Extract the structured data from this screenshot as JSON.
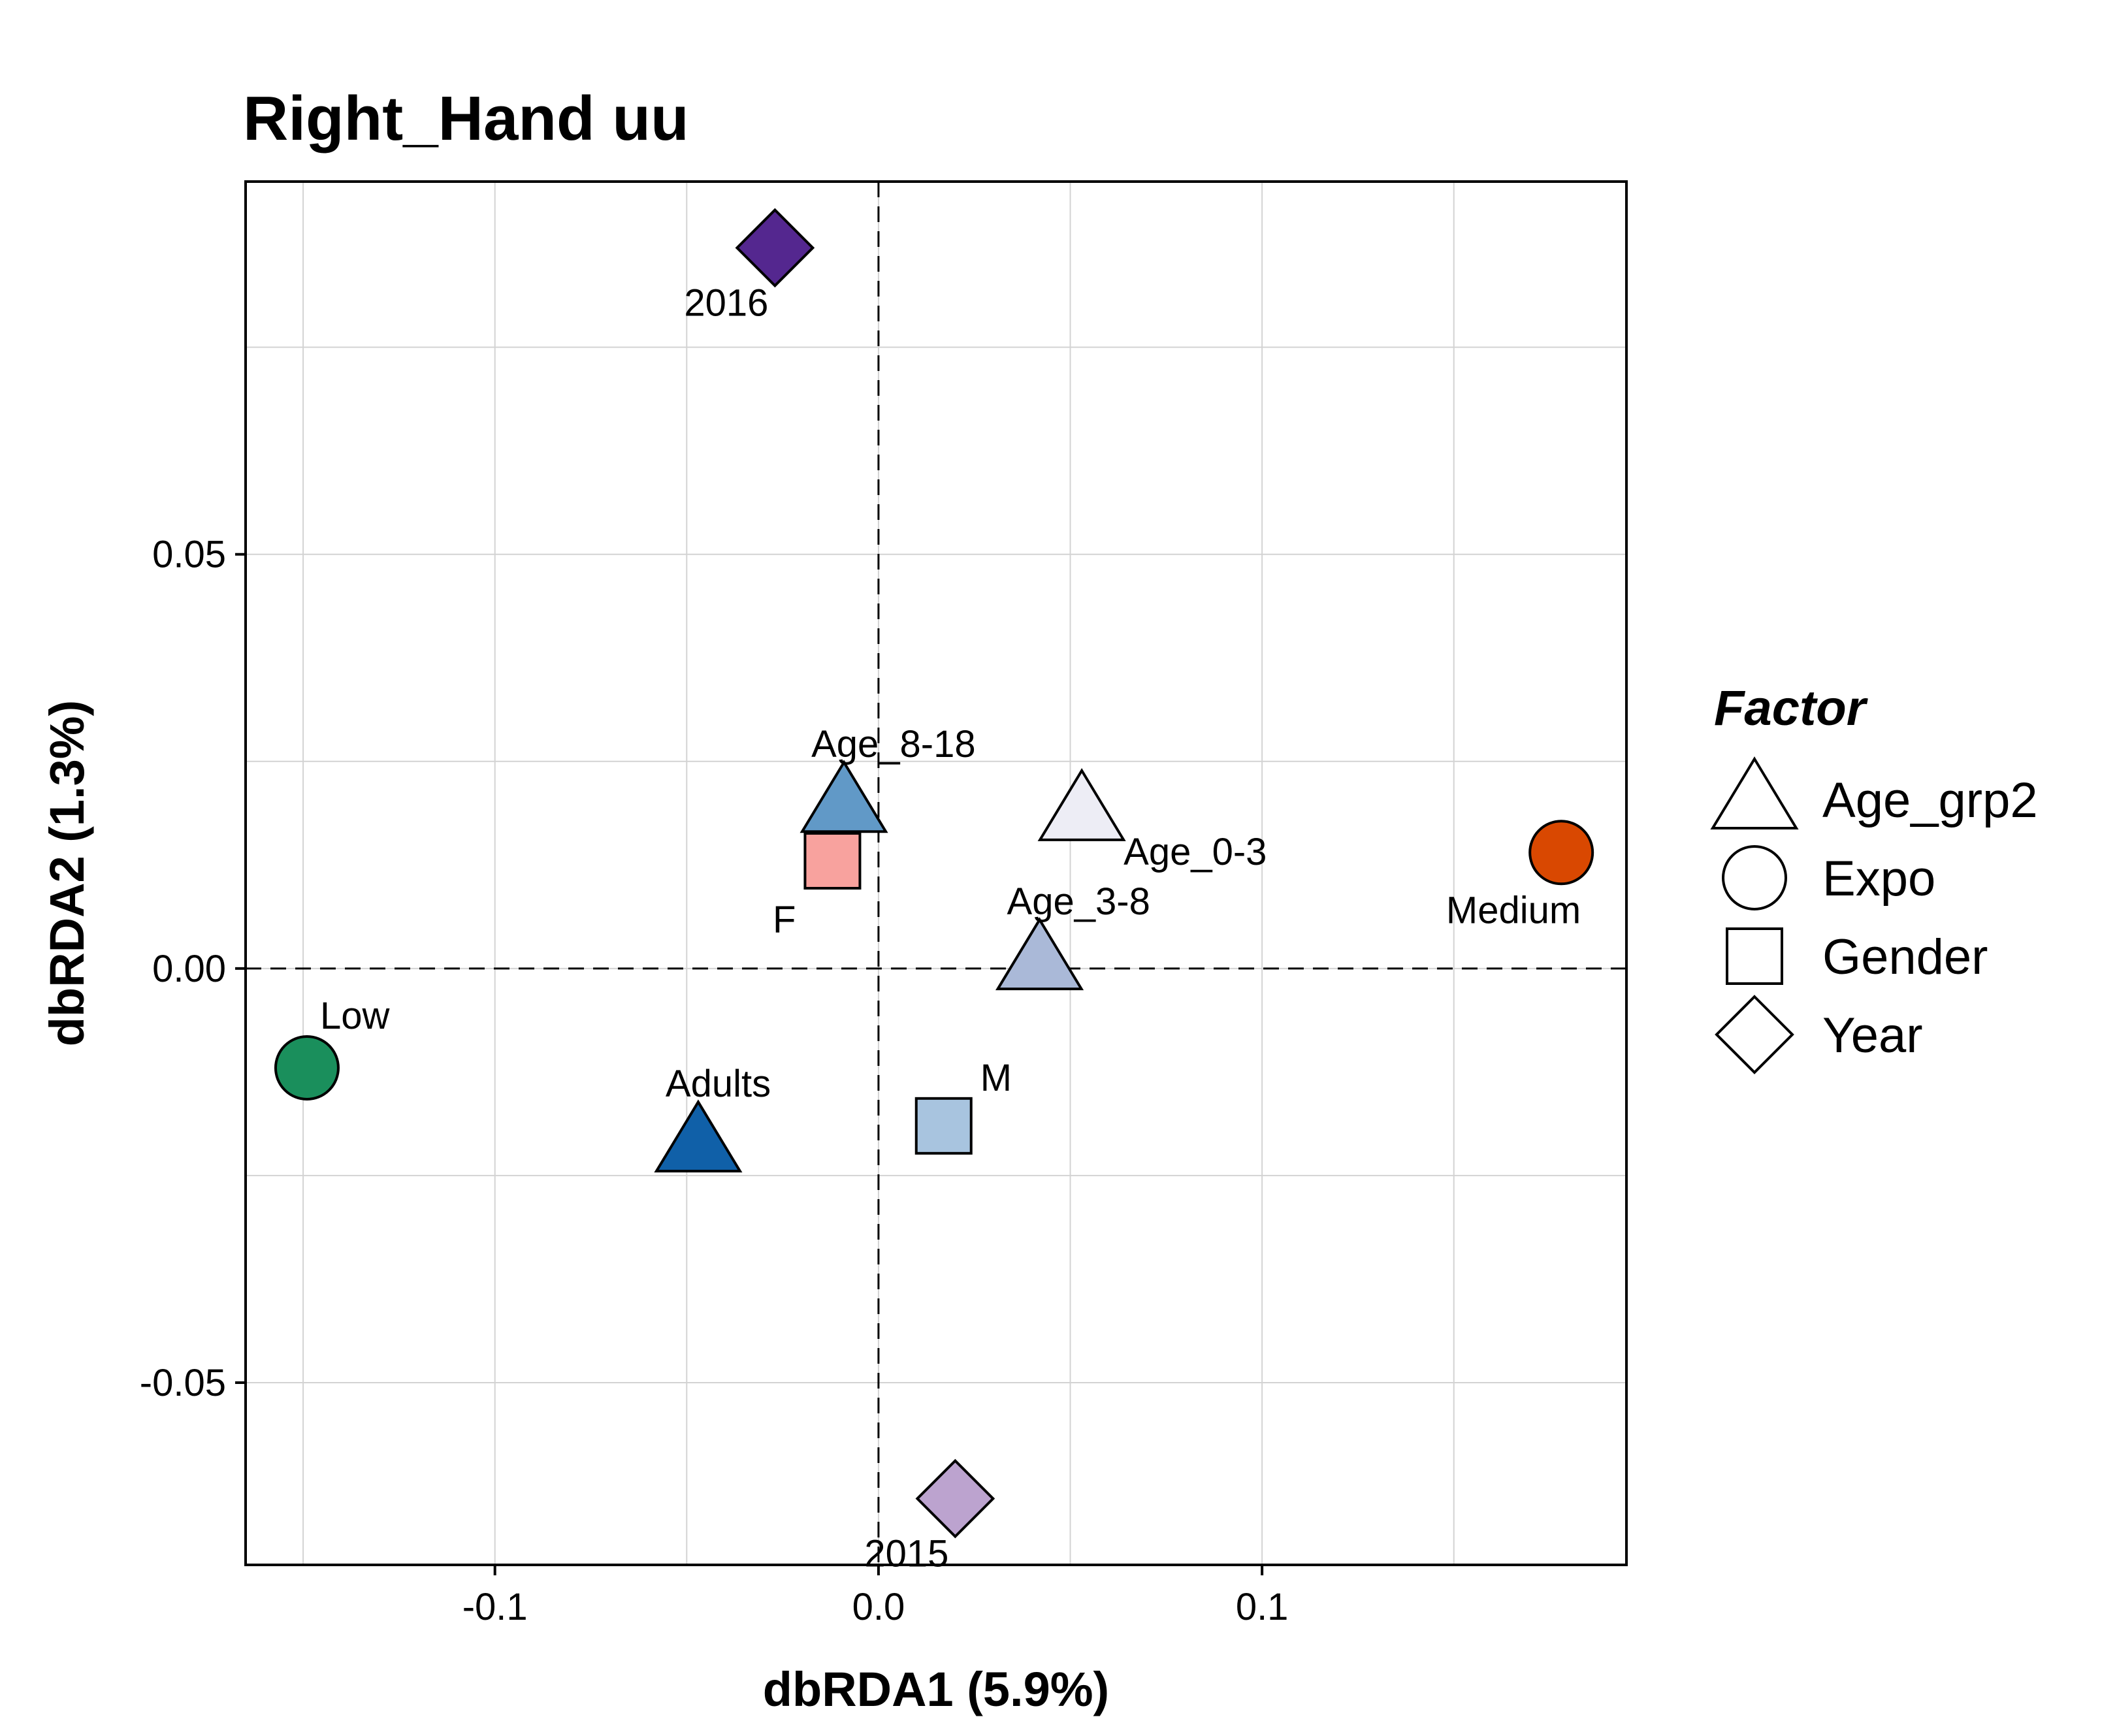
{
  "chart_data": {
    "type": "scatter",
    "title": "Right_Hand uu",
    "xlabel": "dbRDA1 (5.9%)",
    "ylabel": "dbRDA2 (1.3%)",
    "xlim": [
      -0.165,
      0.195
    ],
    "ylim": [
      -0.072,
      0.095
    ],
    "x_ticks": [
      -0.1,
      0.0,
      0.1
    ],
    "x_tick_labels": [
      "-0.1",
      "0.0",
      "0.1"
    ],
    "y_ticks": [
      -0.05,
      0.0,
      0.05
    ],
    "y_tick_labels": [
      "-0.05",
      "0.00",
      "0.05"
    ],
    "x_minor_grid": [
      -0.15,
      -0.05,
      0.05,
      0.15
    ],
    "y_minor_grid": [
      -0.025,
      0.025,
      0.075
    ],
    "grid": true,
    "zero_lines": true,
    "legend": {
      "title": "Factor",
      "position": "right",
      "entries": [
        {
          "label": "Age_grp2",
          "shape": "triangle"
        },
        {
          "label": "Expo",
          "shape": "circle"
        },
        {
          "label": "Gender",
          "shape": "square"
        },
        {
          "label": "Year",
          "shape": "diamond"
        }
      ]
    },
    "points": [
      {
        "label": "2016",
        "factor": "Year",
        "shape": "diamond",
        "x": -0.027,
        "y": 0.087,
        "color": "#54278f",
        "label_pos": "below-left"
      },
      {
        "label": "Age_8-18",
        "factor": "Age_grp2",
        "shape": "triangle",
        "x": -0.009,
        "y": 0.02,
        "color": "#6199c7",
        "label_pos": "above-right"
      },
      {
        "label": "F",
        "factor": "Gender",
        "shape": "square",
        "x": -0.012,
        "y": 0.013,
        "color": "#f8a29e",
        "label_pos": "below-left"
      },
      {
        "label": "Age_0-3",
        "factor": "Age_grp2",
        "shape": "triangle",
        "x": 0.053,
        "y": 0.019,
        "color": "#ededf5",
        "label_pos": "below-right"
      },
      {
        "label": "Medium",
        "factor": "Expo",
        "shape": "circle",
        "x": 0.178,
        "y": 0.014,
        "color": "#d94801",
        "label_pos": "below-left"
      },
      {
        "label": "Age_3-8",
        "factor": "Age_grp2",
        "shape": "triangle",
        "x": 0.042,
        "y": 0.001,
        "color": "#aab9d8",
        "label_pos": "above-right"
      },
      {
        "label": "Low",
        "factor": "Expo",
        "shape": "circle",
        "x": -0.149,
        "y": -0.012,
        "color": "#1a8f5c",
        "label_pos": "above-right"
      },
      {
        "label": "Adults",
        "factor": "Age_grp2",
        "shape": "triangle",
        "x": -0.047,
        "y": -0.021,
        "color": "#1060a8",
        "label_pos": "above-right"
      },
      {
        "label": "M",
        "factor": "Gender",
        "shape": "square",
        "x": 0.017,
        "y": -0.019,
        "color": "#a8c4df",
        "label_pos": "above-right"
      },
      {
        "label": "2015",
        "factor": "Year",
        "shape": "diamond",
        "x": 0.02,
        "y": -0.064,
        "color": "#bca3cf",
        "label_pos": "below-left"
      }
    ]
  }
}
